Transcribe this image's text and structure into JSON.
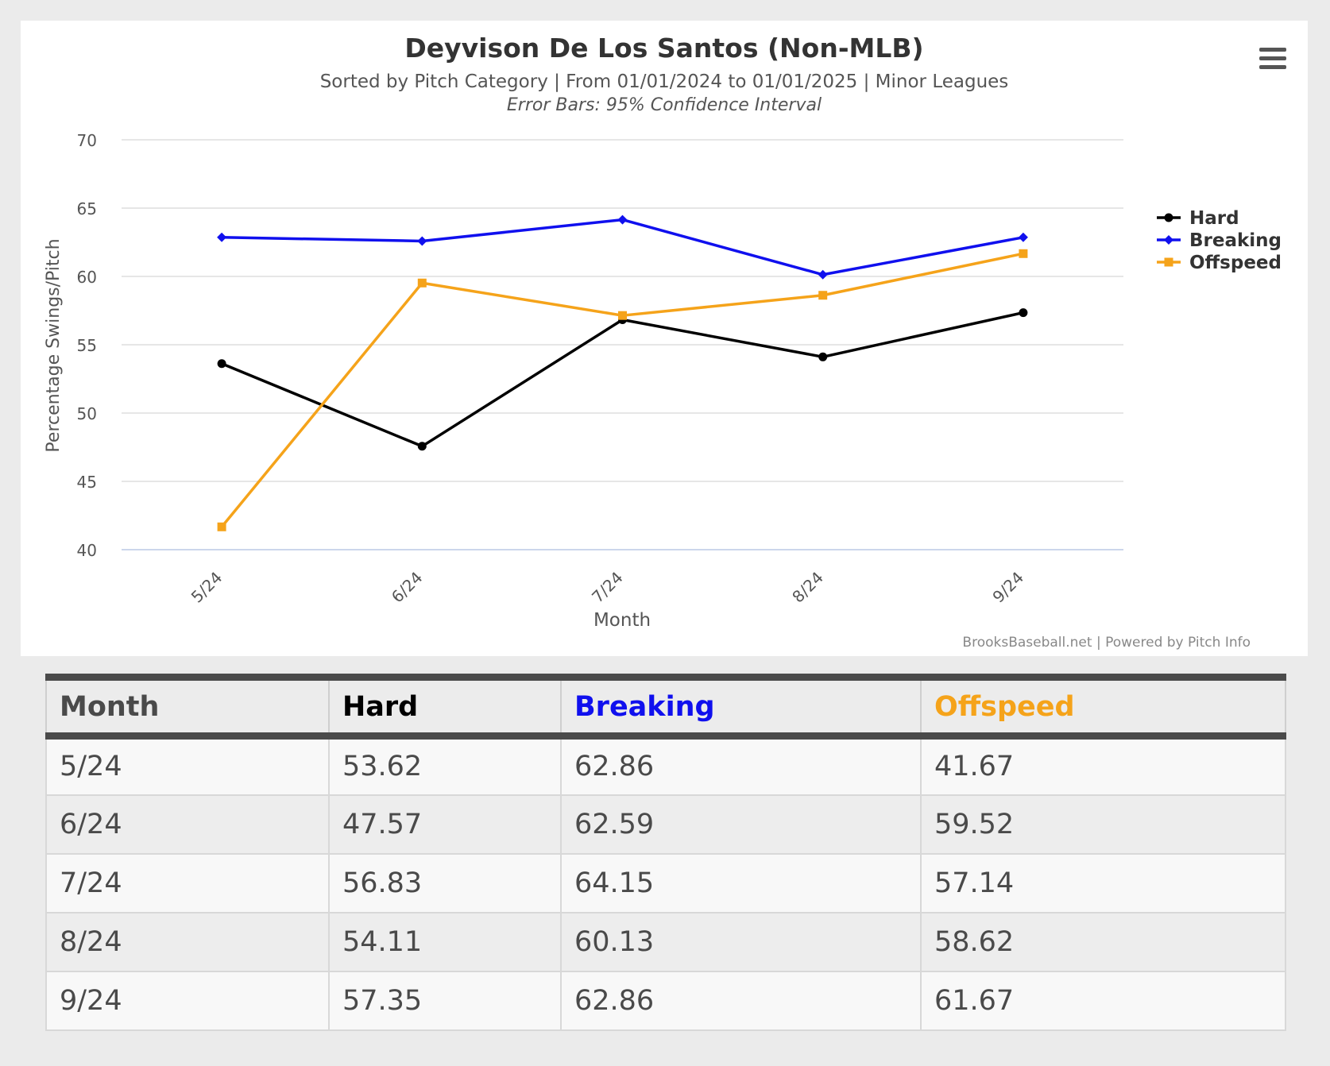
{
  "chart_data": {
    "type": "line",
    "title": "Deyvison De Los Santos (Non-MLB)",
    "subtitle": "Sorted by Pitch Category | From 01/01/2024 to 01/01/2025 | Minor Leagues",
    "subtitle2": "Error Bars: 95% Confidence Interval",
    "xlabel": "Month",
    "ylabel": "Percentage Swings/Pitch",
    "categories": [
      "5/24",
      "6/24",
      "7/24",
      "8/24",
      "9/24"
    ],
    "ylim": [
      40,
      70
    ],
    "yticks": [
      40,
      45,
      50,
      55,
      60,
      65,
      70
    ],
    "grid": true,
    "legend_position": "right",
    "series": [
      {
        "name": "Hard",
        "color": "#000000",
        "marker": "circle",
        "values": [
          53.62,
          47.57,
          56.83,
          54.11,
          57.35
        ]
      },
      {
        "name": "Breaking",
        "color": "#1010ee",
        "marker": "diamond",
        "values": [
          62.86,
          62.59,
          64.15,
          60.13,
          62.86
        ]
      },
      {
        "name": "Offspeed",
        "color": "#f5a31a",
        "marker": "square",
        "values": [
          41.67,
          59.52,
          57.14,
          58.62,
          61.67
        ]
      }
    ],
    "credits": "BrooksBaseball.net | Powered by Pitch Info"
  },
  "table": {
    "headers": [
      {
        "label": "Month",
        "color": "#4a4a4a"
      },
      {
        "label": "Hard",
        "color": "#000000"
      },
      {
        "label": "Breaking",
        "color": "#1010ee"
      },
      {
        "label": "Offspeed",
        "color": "#f5a31a"
      }
    ],
    "rows": [
      [
        "5/24",
        "53.62",
        "62.86",
        "41.67"
      ],
      [
        "6/24",
        "47.57",
        "62.59",
        "59.52"
      ],
      [
        "7/24",
        "56.83",
        "64.15",
        "57.14"
      ],
      [
        "8/24",
        "54.11",
        "60.13",
        "58.62"
      ],
      [
        "9/24",
        "57.35",
        "62.86",
        "61.67"
      ]
    ]
  },
  "menu": {
    "icon": "hamburger-menu-icon"
  }
}
